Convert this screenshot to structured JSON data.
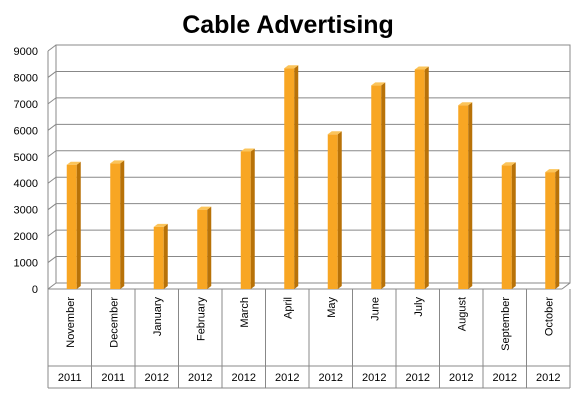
{
  "chart_data": {
    "type": "bar",
    "title": "Cable Advertising",
    "xlabel": "",
    "ylabel": "",
    "ylim": [
      0,
      9000
    ],
    "yticks": [
      0,
      1000,
      2000,
      3000,
      4000,
      5000,
      6000,
      7000,
      8000,
      9000
    ],
    "grid": true,
    "legend": "none",
    "categories": [
      "November",
      "December",
      "January",
      "February",
      "March",
      "April",
      "May",
      "June",
      "July",
      "August",
      "September",
      "October"
    ],
    "years": [
      "2011",
      "2011",
      "2012",
      "2012",
      "2012",
      "2012",
      "2012",
      "2012",
      "2012",
      "2012",
      "2012",
      "2012"
    ],
    "values": [
      4700,
      4750,
      2350,
      3000,
      5200,
      8350,
      5850,
      7700,
      8300,
      6950,
      4680,
      4420
    ],
    "colors": {
      "bar_front": "#F8A623",
      "bar_side": "#B87208",
      "bar_top": "#FBC45A",
      "grid": "#888888",
      "wall": "#FFFFFF"
    }
  }
}
